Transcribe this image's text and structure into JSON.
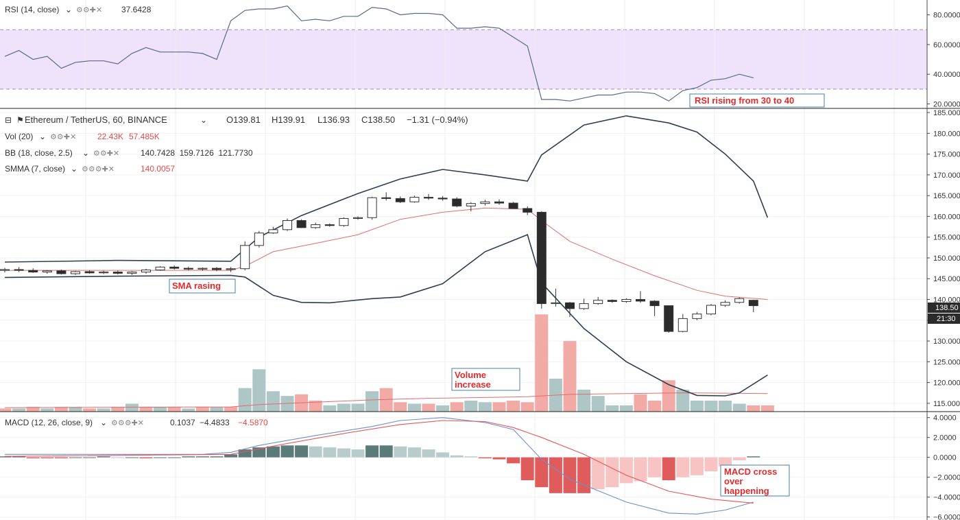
{
  "colors": {
    "up_fill": "#ffffff",
    "down_fill": "#2b2b2b",
    "candle_border": "#333333",
    "bb_line": "#2f3d4f",
    "smma_line": "#e36b6b",
    "rsi_line": "#5a6a85",
    "rsi_band": "#efe3fb",
    "macd_line": "#6b8fc8",
    "signal_line": "#e8555a",
    "vol_up": "#aec7c6",
    "vol_down": "#f2aaa6",
    "hist_pos_strong": "#5b7a7a",
    "hist_pos_weak": "#b8cccc",
    "hist_neg_strong": "#e05b5b",
    "hist_neg_weak": "#f7c3c3",
    "annotation": "#e8282a"
  },
  "rsi_panel": {
    "label": "RSI (14, close)",
    "value": "37.6428",
    "ticks": [
      "80.0000",
      "60.0000",
      "40.0000",
      "20.0000"
    ]
  },
  "price_panel": {
    "symbol": "Ethereum / TetherUS, 60, BINANCE",
    "open": "O139.81",
    "high": "H139.91",
    "low": "L136.93",
    "close": "C138.50",
    "change": "−1.31 (−0.94%)",
    "vol_label": "Vol (20)",
    "vol_value1": "22.43K",
    "vol_value2": "57.485K",
    "bb_label": "BB (18, close, 2.5)",
    "bb_values": "140.7428  159.7126  121.7730",
    "smma_label": "SMMA (7, close)",
    "smma_value": "140.0057",
    "ticks": [
      "185.000",
      "180.000",
      "175.000",
      "170.000",
      "165.000",
      "160.000",
      "155.000",
      "150.000",
      "145.000",
      "140.000",
      "135.000",
      "130.000",
      "125.000",
      "120.000",
      "115.000"
    ],
    "last_price_tag": "138.50",
    "countdown_tag": "21:30"
  },
  "macd_panel": {
    "label": "MACD (12, 26, close, 9)",
    "value1": "0.1037",
    "value2": "−4.4833",
    "value3": "−4.5870",
    "ticks": [
      "4.0000",
      "2.0000",
      "0.0000",
      "−2.0000",
      "−4.0000",
      "−6.0000"
    ]
  },
  "annotations": {
    "rsi": "RSI rising from 30 to 40",
    "sma": "SMA rasing",
    "volume_line1": "Volume",
    "volume_line2": "increase",
    "macd_line1": "MACD cross",
    "macd_line2": "over",
    "macd_line3": "happening"
  },
  "chart_data": {
    "type": "candlestick",
    "x_count": 55,
    "ylim_price": [
      113,
      186
    ],
    "ylim_rsi": [
      17,
      90
    ],
    "ylim_macd": [
      -6.3,
      4.6
    ],
    "candles": [
      {
        "o": 147.0,
        "h": 147.6,
        "l": 146.5,
        "c": 147.2
      },
      {
        "o": 147.2,
        "h": 147.8,
        "l": 146.6,
        "c": 147.0
      },
      {
        "o": 147.0,
        "h": 147.5,
        "l": 146.4,
        "c": 146.6
      },
      {
        "o": 146.6,
        "h": 147.1,
        "l": 146.2,
        "c": 146.9
      },
      {
        "o": 146.9,
        "h": 147.2,
        "l": 146.0,
        "c": 146.2
      },
      {
        "o": 146.2,
        "h": 146.9,
        "l": 145.9,
        "c": 146.7
      },
      {
        "o": 146.7,
        "h": 147.0,
        "l": 146.2,
        "c": 146.4
      },
      {
        "o": 146.4,
        "h": 146.9,
        "l": 146.1,
        "c": 146.6
      },
      {
        "o": 146.6,
        "h": 147.0,
        "l": 146.0,
        "c": 146.3
      },
      {
        "o": 146.3,
        "h": 146.8,
        "l": 145.9,
        "c": 146.6
      },
      {
        "o": 146.6,
        "h": 147.4,
        "l": 146.2,
        "c": 147.1
      },
      {
        "o": 147.1,
        "h": 148.0,
        "l": 146.9,
        "c": 147.8
      },
      {
        "o": 147.8,
        "h": 148.2,
        "l": 147.2,
        "c": 147.5
      },
      {
        "o": 147.5,
        "h": 147.9,
        "l": 147.0,
        "c": 147.3
      },
      {
        "o": 147.3,
        "h": 147.7,
        "l": 146.9,
        "c": 147.5
      },
      {
        "o": 147.5,
        "h": 147.8,
        "l": 146.8,
        "c": 147.2
      },
      {
        "o": 147.2,
        "h": 147.8,
        "l": 146.6,
        "c": 147.4
      },
      {
        "o": 147.4,
        "h": 154.0,
        "l": 147.0,
        "c": 153.0
      },
      {
        "o": 153.0,
        "h": 156.5,
        "l": 152.5,
        "c": 156.0
      },
      {
        "o": 156.0,
        "h": 157.5,
        "l": 155.8,
        "c": 156.8
      },
      {
        "o": 156.8,
        "h": 159.5,
        "l": 156.5,
        "c": 159.0
      },
      {
        "o": 159.0,
        "h": 159.3,
        "l": 157.2,
        "c": 157.3
      },
      {
        "o": 157.3,
        "h": 158.5,
        "l": 157.0,
        "c": 158.0
      },
      {
        "o": 158.0,
        "h": 158.3,
        "l": 157.5,
        "c": 157.8
      },
      {
        "o": 157.8,
        "h": 159.8,
        "l": 157.5,
        "c": 159.5
      },
      {
        "o": 159.5,
        "h": 160.0,
        "l": 159.2,
        "c": 159.7
      },
      {
        "o": 159.7,
        "h": 164.7,
        "l": 159.2,
        "c": 164.5
      },
      {
        "o": 164.5,
        "h": 165.8,
        "l": 163.8,
        "c": 164.3
      },
      {
        "o": 164.3,
        "h": 164.8,
        "l": 163.2,
        "c": 163.5
      },
      {
        "o": 163.5,
        "h": 165.0,
        "l": 163.3,
        "c": 164.6
      },
      {
        "o": 164.6,
        "h": 165.4,
        "l": 164.0,
        "c": 164.4
      },
      {
        "o": 164.4,
        "h": 164.9,
        "l": 163.8,
        "c": 164.2
      },
      {
        "o": 164.2,
        "h": 164.6,
        "l": 162.2,
        "c": 162.5
      },
      {
        "o": 162.5,
        "h": 163.4,
        "l": 161.2,
        "c": 163.1
      },
      {
        "o": 163.1,
        "h": 164.0,
        "l": 162.6,
        "c": 163.5
      },
      {
        "o": 163.5,
        "h": 164.1,
        "l": 162.8,
        "c": 163.2
      },
      {
        "o": 163.2,
        "h": 163.5,
        "l": 161.8,
        "c": 161.9
      },
      {
        "o": 161.9,
        "h": 162.4,
        "l": 160.3,
        "c": 161.0
      },
      {
        "o": 161.0,
        "h": 161.2,
        "l": 137.8,
        "c": 139.0
      },
      {
        "o": 139.0,
        "h": 142.6,
        "l": 138.3,
        "c": 139.2
      },
      {
        "o": 139.2,
        "h": 139.4,
        "l": 135.8,
        "c": 137.8
      },
      {
        "o": 137.8,
        "h": 140.2,
        "l": 137.5,
        "c": 139.0
      },
      {
        "o": 139.0,
        "h": 140.6,
        "l": 138.7,
        "c": 139.8
      },
      {
        "o": 139.8,
        "h": 140.0,
        "l": 139.2,
        "c": 139.5
      },
      {
        "o": 139.5,
        "h": 140.3,
        "l": 139.2,
        "c": 140.0
      },
      {
        "o": 140.0,
        "h": 142.0,
        "l": 139.2,
        "c": 139.6
      },
      {
        "o": 139.6,
        "h": 139.8,
        "l": 136.0,
        "c": 138.5
      },
      {
        "o": 138.5,
        "h": 138.6,
        "l": 132.0,
        "c": 132.3
      },
      {
        "o": 132.3,
        "h": 136.5,
        "l": 132.1,
        "c": 135.4
      },
      {
        "o": 135.4,
        "h": 137.0,
        "l": 135.0,
        "c": 136.5
      },
      {
        "o": 136.5,
        "h": 138.9,
        "l": 136.2,
        "c": 138.6
      },
      {
        "o": 138.6,
        "h": 139.8,
        "l": 138.2,
        "c": 139.3
      },
      {
        "o": 139.3,
        "h": 140.5,
        "l": 139.0,
        "c": 140.2
      },
      {
        "o": 139.81,
        "h": 139.91,
        "l": 136.93,
        "c": 138.5
      }
    ],
    "bb_upper": [
      {
        "x": 0,
        "y": 149.0
      },
      {
        "x": 8,
        "y": 149.4
      },
      {
        "x": 16,
        "y": 149.2
      },
      {
        "x": 18,
        "y": 155.0
      },
      {
        "x": 21,
        "y": 160.2
      },
      {
        "x": 25,
        "y": 165.5
      },
      {
        "x": 28,
        "y": 169.0
      },
      {
        "x": 31,
        "y": 171.3
      },
      {
        "x": 34,
        "y": 170.0
      },
      {
        "x": 37,
        "y": 168.5
      },
      {
        "x": 38,
        "y": 174.8
      },
      {
        "x": 41,
        "y": 182.0
      },
      {
        "x": 44,
        "y": 184.2
      },
      {
        "x": 47,
        "y": 182.5
      },
      {
        "x": 49,
        "y": 180.3
      },
      {
        "x": 51,
        "y": 175.0
      },
      {
        "x": 53,
        "y": 168.5
      },
      {
        "x": 54,
        "y": 159.7
      }
    ],
    "bb_lower": [
      {
        "x": 0,
        "y": 145.3
      },
      {
        "x": 8,
        "y": 145.6
      },
      {
        "x": 16,
        "y": 145.8
      },
      {
        "x": 17,
        "y": 145.4
      },
      {
        "x": 19,
        "y": 141.0
      },
      {
        "x": 21,
        "y": 139.3
      },
      {
        "x": 23,
        "y": 139.2
      },
      {
        "x": 26,
        "y": 140.2
      },
      {
        "x": 28,
        "y": 140.6
      },
      {
        "x": 31,
        "y": 143.8
      },
      {
        "x": 34,
        "y": 151.5
      },
      {
        "x": 37,
        "y": 155.6
      },
      {
        "x": 38,
        "y": 144.0
      },
      {
        "x": 41,
        "y": 133.0
      },
      {
        "x": 44,
        "y": 125.0
      },
      {
        "x": 47,
        "y": 119.5
      },
      {
        "x": 49,
        "y": 116.9
      },
      {
        "x": 51,
        "y": 116.8
      },
      {
        "x": 52,
        "y": 117.5
      },
      {
        "x": 54,
        "y": 121.8
      }
    ],
    "smma": [
      {
        "x": 0,
        "y": 147.0
      },
      {
        "x": 16,
        "y": 147.0
      },
      {
        "x": 17,
        "y": 148.0
      },
      {
        "x": 19,
        "y": 151.5
      },
      {
        "x": 22,
        "y": 153.5
      },
      {
        "x": 25,
        "y": 155.6
      },
      {
        "x": 28,
        "y": 159.3
      },
      {
        "x": 31,
        "y": 161.0
      },
      {
        "x": 34,
        "y": 162.0
      },
      {
        "x": 37,
        "y": 161.7
      },
      {
        "x": 38,
        "y": 159.0
      },
      {
        "x": 40,
        "y": 154.0
      },
      {
        "x": 43,
        "y": 149.7
      },
      {
        "x": 46,
        "y": 145.7
      },
      {
        "x": 49,
        "y": 142.2
      },
      {
        "x": 51,
        "y": 140.8
      },
      {
        "x": 54,
        "y": 140.0
      }
    ],
    "volume": [
      {
        "v": 2,
        "up": false
      },
      {
        "v": 2,
        "up": true
      },
      {
        "v": 3,
        "up": false
      },
      {
        "v": 2,
        "up": true
      },
      {
        "v": 3,
        "up": false
      },
      {
        "v": 3,
        "up": true
      },
      {
        "v": 2,
        "up": false
      },
      {
        "v": 2,
        "up": true
      },
      {
        "v": 3,
        "up": false
      },
      {
        "v": 5,
        "up": true
      },
      {
        "v": 3,
        "up": false
      },
      {
        "v": 3,
        "up": true
      },
      {
        "v": 3,
        "up": false
      },
      {
        "v": 2,
        "up": true
      },
      {
        "v": 3,
        "up": false
      },
      {
        "v": 3,
        "up": true
      },
      {
        "v": 3,
        "up": false
      },
      {
        "v": 15,
        "up": true
      },
      {
        "v": 27,
        "up": true
      },
      {
        "v": 13,
        "up": true
      },
      {
        "v": 10,
        "up": true
      },
      {
        "v": 11,
        "up": false
      },
      {
        "v": 7,
        "up": false
      },
      {
        "v": 4,
        "up": true
      },
      {
        "v": 5,
        "up": true
      },
      {
        "v": 5,
        "up": true
      },
      {
        "v": 13,
        "up": true
      },
      {
        "v": 15,
        "up": false
      },
      {
        "v": 6,
        "up": false
      },
      {
        "v": 5,
        "up": true
      },
      {
        "v": 5,
        "up": false
      },
      {
        "v": 4,
        "up": true
      },
      {
        "v": 6,
        "up": false
      },
      {
        "v": 7,
        "up": true
      },
      {
        "v": 6,
        "up": true
      },
      {
        "v": 6,
        "up": false
      },
      {
        "v": 7,
        "up": false
      },
      {
        "v": 6,
        "up": false
      },
      {
        "v": 62,
        "up": false
      },
      {
        "v": 21,
        "up": true
      },
      {
        "v": 45,
        "up": false
      },
      {
        "v": 14,
        "up": true
      },
      {
        "v": 10,
        "up": true
      },
      {
        "v": 4,
        "up": true
      },
      {
        "v": 4,
        "up": true
      },
      {
        "v": 11,
        "up": false
      },
      {
        "v": 7,
        "up": false
      },
      {
        "v": 20,
        "up": false
      },
      {
        "v": 14,
        "up": true
      },
      {
        "v": 7,
        "up": true
      },
      {
        "v": 7,
        "up": true
      },
      {
        "v": 7,
        "up": true
      },
      {
        "v": 5,
        "up": true
      },
      {
        "v": 4,
        "up": false
      },
      {
        "v": 4,
        "up": false
      }
    ],
    "volume_ylim": [
      0,
      70
    ],
    "volume_ma": [
      {
        "x": 0,
        "y": 2.5
      },
      {
        "x": 16,
        "y": 3.0
      },
      {
        "x": 18,
        "y": 4.5
      },
      {
        "x": 22,
        "y": 6.0
      },
      {
        "x": 26,
        "y": 7.5
      },
      {
        "x": 30,
        "y": 8.5
      },
      {
        "x": 34,
        "y": 9.0
      },
      {
        "x": 37,
        "y": 9.5
      },
      {
        "x": 40,
        "y": 11.0
      },
      {
        "x": 44,
        "y": 11.5
      },
      {
        "x": 48,
        "y": 12.0
      },
      {
        "x": 54,
        "y": 11.5
      }
    ],
    "rsi": [
      {
        "x": 0,
        "y": 52
      },
      {
        "x": 1,
        "y": 56
      },
      {
        "x": 2,
        "y": 50
      },
      {
        "x": 3,
        "y": 52
      },
      {
        "x": 4,
        "y": 44
      },
      {
        "x": 5,
        "y": 48
      },
      {
        "x": 6,
        "y": 49
      },
      {
        "x": 7,
        "y": 49
      },
      {
        "x": 8,
        "y": 47
      },
      {
        "x": 9,
        "y": 54
      },
      {
        "x": 10,
        "y": 58
      },
      {
        "x": 11,
        "y": 55
      },
      {
        "x": 12,
        "y": 55
      },
      {
        "x": 13,
        "y": 55
      },
      {
        "x": 14,
        "y": 54
      },
      {
        "x": 15,
        "y": 50
      },
      {
        "x": 16,
        "y": 76
      },
      {
        "x": 17,
        "y": 83
      },
      {
        "x": 18,
        "y": 84
      },
      {
        "x": 19,
        "y": 84
      },
      {
        "x": 20,
        "y": 86
      },
      {
        "x": 21,
        "y": 76
      },
      {
        "x": 22,
        "y": 77
      },
      {
        "x": 23,
        "y": 76
      },
      {
        "x": 24,
        "y": 79
      },
      {
        "x": 25,
        "y": 79
      },
      {
        "x": 26,
        "y": 85
      },
      {
        "x": 27,
        "y": 84
      },
      {
        "x": 28,
        "y": 80
      },
      {
        "x": 29,
        "y": 81
      },
      {
        "x": 30,
        "y": 81
      },
      {
        "x": 31,
        "y": 80
      },
      {
        "x": 32,
        "y": 71
      },
      {
        "x": 33,
        "y": 71
      },
      {
        "x": 34,
        "y": 72
      },
      {
        "x": 35,
        "y": 71
      },
      {
        "x": 36,
        "y": 65
      },
      {
        "x": 37,
        "y": 59
      },
      {
        "x": 38,
        "y": 23
      },
      {
        "x": 39,
        "y": 23
      },
      {
        "x": 40,
        "y": 22
      },
      {
        "x": 41,
        "y": 24
      },
      {
        "x": 42,
        "y": 26
      },
      {
        "x": 43,
        "y": 26
      },
      {
        "x": 44,
        "y": 28
      },
      {
        "x": 45,
        "y": 28
      },
      {
        "x": 46,
        "y": 27
      },
      {
        "x": 47,
        "y": 22
      },
      {
        "x": 48,
        "y": 29
      },
      {
        "x": 49,
        "y": 31
      },
      {
        "x": 50,
        "y": 36
      },
      {
        "x": 51,
        "y": 37
      },
      {
        "x": 52,
        "y": 40
      },
      {
        "x": 53,
        "y": 37.6
      }
    ],
    "rsi_band": [
      30,
      70
    ],
    "macd_line": [
      {
        "x": 0,
        "y": 0.3
      },
      {
        "x": 14,
        "y": 0.3
      },
      {
        "x": 16,
        "y": 0.5
      },
      {
        "x": 18,
        "y": 1.2
      },
      {
        "x": 22,
        "y": 2.2
      },
      {
        "x": 26,
        "y": 3.1
      },
      {
        "x": 28,
        "y": 3.7
      },
      {
        "x": 31,
        "y": 4.0
      },
      {
        "x": 34,
        "y": 3.5
      },
      {
        "x": 36,
        "y": 2.8
      },
      {
        "x": 38,
        "y": -0.2
      },
      {
        "x": 40,
        "y": -2.2
      },
      {
        "x": 44,
        "y": -4.5
      },
      {
        "x": 47,
        "y": -5.6
      },
      {
        "x": 49,
        "y": -5.7
      },
      {
        "x": 51,
        "y": -5.3
      },
      {
        "x": 53,
        "y": -4.5
      }
    ],
    "signal_line": [
      {
        "x": 0,
        "y": 0.1
      },
      {
        "x": 16,
        "y": 0.3
      },
      {
        "x": 20,
        "y": 1.4
      },
      {
        "x": 24,
        "y": 2.4
      },
      {
        "x": 28,
        "y": 3.3
      },
      {
        "x": 31,
        "y": 3.7
      },
      {
        "x": 34,
        "y": 3.6
      },
      {
        "x": 36,
        "y": 3.0
      },
      {
        "x": 38,
        "y": 2.0
      },
      {
        "x": 41,
        "y": 0.3
      },
      {
        "x": 44,
        "y": -1.8
      },
      {
        "x": 47,
        "y": -3.4
      },
      {
        "x": 50,
        "y": -4.2
      },
      {
        "x": 53,
        "y": -4.6
      }
    ],
    "macd_hist": [
      0.1,
      0.1,
      -0.1,
      -0.1,
      -0.1,
      0.0,
      0.0,
      0.1,
      0.0,
      0.0,
      -0.1,
      0.0,
      0.0,
      0.1,
      0.1,
      0.1,
      0.3,
      0.8,
      1.0,
      1.1,
      1.2,
      1.2,
      1.1,
      1.0,
      0.9,
      0.8,
      1.2,
      1.2,
      1.1,
      1.0,
      0.8,
      0.5,
      0.2,
      0.1,
      -0.1,
      -0.2,
      -0.6,
      -2.3,
      -3.0,
      -3.6,
      -3.6,
      -3.6,
      -3.2,
      -3.0,
      -2.6,
      -2.4,
      -2.0,
      -2.3,
      -2.0,
      -1.8,
      -1.4,
      -0.9,
      -0.3,
      0.1
    ]
  }
}
